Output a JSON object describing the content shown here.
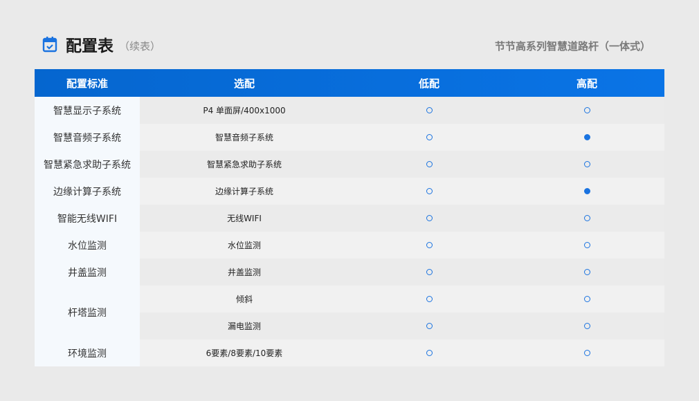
{
  "header": {
    "title": "配置表",
    "subtitle": "（续表）",
    "series_title": "节节高系列智慧道路杆（一体式）",
    "icon": "calendar-check-icon"
  },
  "colors": {
    "accent": "#0a6fdc",
    "filled_dot": "#1a73e0"
  },
  "table": {
    "columns": [
      "配置标准",
      "选配",
      "低配",
      "高配"
    ],
    "rows": [
      {
        "standard": "智慧显示子系统",
        "option": "P4 单面屏/400x1000",
        "low": "optional",
        "high": "optional"
      },
      {
        "standard": "智慧音频子系统",
        "option": "智慧音频子系统",
        "low": "optional",
        "high": "standard"
      },
      {
        "standard": "智慧紧急求助子系统",
        "option": "智慧紧急求助子系统",
        "low": "optional",
        "high": "optional"
      },
      {
        "standard": "边缘计算子系统",
        "option": "边缘计算子系统",
        "low": "optional",
        "high": "standard"
      },
      {
        "standard": "智能无线WIFI",
        "option": "无线WIFI",
        "low": "optional",
        "high": "optional"
      },
      {
        "standard": "水位监测",
        "option": "水位监测",
        "low": "optional",
        "high": "optional"
      },
      {
        "standard": "井盖监测",
        "option": "井盖监测",
        "low": "optional",
        "high": "optional"
      },
      {
        "standard": "杆塔监测",
        "option": "倾斜",
        "low": "optional",
        "high": "optional"
      },
      {
        "standard": "",
        "option": "漏电监测",
        "low": "optional",
        "high": "optional"
      },
      {
        "standard": "环境监测",
        "option": "6要素/8要素/10要素",
        "low": "optional",
        "high": "optional"
      }
    ]
  }
}
